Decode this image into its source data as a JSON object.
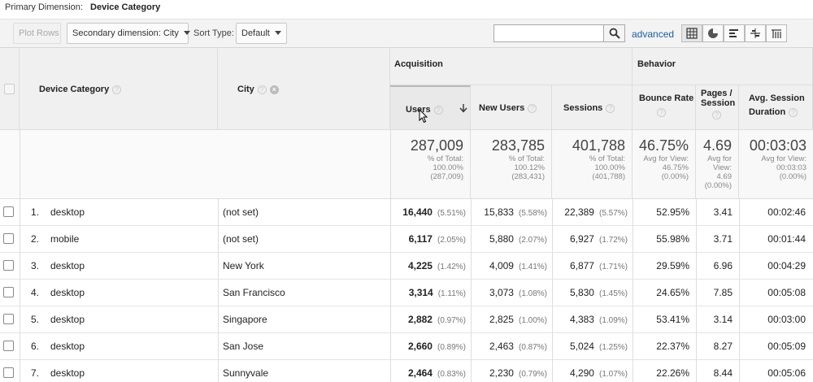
{
  "primary_dimension": {
    "label": "Primary Dimension:",
    "value": "Device Category"
  },
  "toolbar": {
    "plot_rows": "Plot Rows",
    "secondary_dimension": "Secondary dimension: City",
    "sort_type_label": "Sort Type:",
    "sort_type_value": "Default",
    "search_value": "",
    "advanced": "advanced"
  },
  "headers": {
    "device_category": "Device Category",
    "city": "City",
    "acquisition": "Acquisition",
    "behavior": "Behavior",
    "users": "Users",
    "new_users": "New Users",
    "sessions": "Sessions",
    "bounce_rate": "Bounce Rate",
    "pages_session_1": "Pages /",
    "pages_session_2": "Session",
    "avg_session_1": "Avg. Session",
    "avg_session_2": "Duration"
  },
  "totals": {
    "users": {
      "value": "287,009",
      "l1": "% of Total:",
      "l2": "100.00%",
      "l3": "(287,009)"
    },
    "new_users": {
      "value": "283,785",
      "l1": "% of Total:",
      "l2": "100.12%",
      "l3": "(283,431)"
    },
    "sessions": {
      "value": "401,788",
      "l1": "% of Total:",
      "l2": "100.00%",
      "l3": "(401,788)"
    },
    "bounce_rate": {
      "value": "46.75%",
      "l1": "Avg for View:",
      "l2": "46.75%",
      "l3": "(0.00%)"
    },
    "pages_session": {
      "value": "4.69",
      "l1": "Avg for",
      "l2": "View:",
      "l3": "4.69",
      "l4": "(0.00%)"
    },
    "avg_duration": {
      "value": "00:03:03",
      "l1": "Avg for View:",
      "l2": "00:03:03",
      "l3": "(0.00%)"
    }
  },
  "rows": [
    {
      "idx": "1.",
      "device": "desktop",
      "city": "(not set)",
      "users": "16,440",
      "users_pct": "(5.51%)",
      "new_users": "15,833",
      "new_users_pct": "(5.58%)",
      "sessions": "22,389",
      "sessions_pct": "(5.57%)",
      "bounce": "52.95%",
      "pages": "3.41",
      "duration": "00:02:46"
    },
    {
      "idx": "2.",
      "device": "mobile",
      "city": "(not set)",
      "users": "6,117",
      "users_pct": "(2.05%)",
      "new_users": "5,880",
      "new_users_pct": "(2.07%)",
      "sessions": "6,927",
      "sessions_pct": "(1.72%)",
      "bounce": "55.98%",
      "pages": "3.71",
      "duration": "00:01:44"
    },
    {
      "idx": "3.",
      "device": "desktop",
      "city": "New York",
      "users": "4,225",
      "users_pct": "(1.42%)",
      "new_users": "4,009",
      "new_users_pct": "(1.41%)",
      "sessions": "6,877",
      "sessions_pct": "(1.71%)",
      "bounce": "29.59%",
      "pages": "6.96",
      "duration": "00:04:29"
    },
    {
      "idx": "4.",
      "device": "desktop",
      "city": "San Francisco",
      "users": "3,314",
      "users_pct": "(1.11%)",
      "new_users": "3,073",
      "new_users_pct": "(1.08%)",
      "sessions": "5,830",
      "sessions_pct": "(1.45%)",
      "bounce": "24.65%",
      "pages": "7.85",
      "duration": "00:05:08"
    },
    {
      "idx": "5.",
      "device": "desktop",
      "city": "Singapore",
      "users": "2,882",
      "users_pct": "(0.97%)",
      "new_users": "2,825",
      "new_users_pct": "(1.00%)",
      "sessions": "4,383",
      "sessions_pct": "(1.09%)",
      "bounce": "53.41%",
      "pages": "3.14",
      "duration": "00:03:00"
    },
    {
      "idx": "6.",
      "device": "desktop",
      "city": "San Jose",
      "users": "2,660",
      "users_pct": "(0.89%)",
      "new_users": "2,463",
      "new_users_pct": "(0.87%)",
      "sessions": "5,024",
      "sessions_pct": "(1.25%)",
      "bounce": "22.37%",
      "pages": "8.27",
      "duration": "00:05:09"
    },
    {
      "idx": "7.",
      "device": "desktop",
      "city": "Sunnyvale",
      "users": "2,464",
      "users_pct": "(0.83%)",
      "new_users": "2,230",
      "new_users_pct": "(0.79%)",
      "sessions": "4,290",
      "sessions_pct": "(1.07%)",
      "bounce": "22.26%",
      "pages": "8.44",
      "duration": "00:05:06"
    }
  ]
}
